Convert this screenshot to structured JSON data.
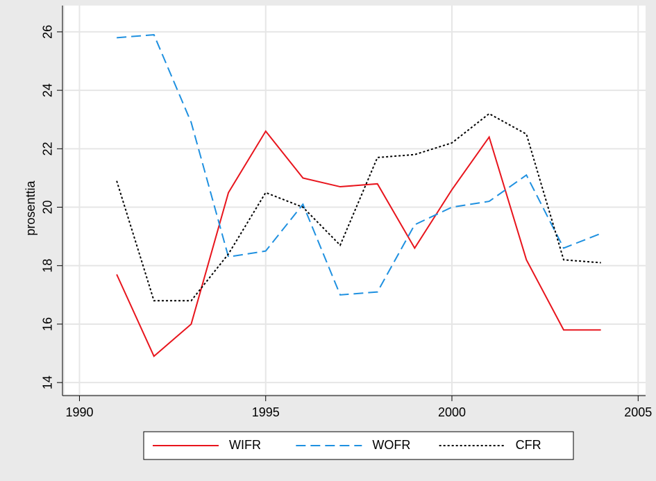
{
  "chart_data": {
    "type": "line",
    "y_label": "prosenttia",
    "x": [
      1991,
      1992,
      1993,
      1994,
      1995,
      1996,
      1997,
      1998,
      1999,
      2000,
      2001,
      2002,
      2003,
      2004
    ],
    "series": [
      {
        "name": "WIFR",
        "color": "#e8141c",
        "dash": "none",
        "values": [
          17.7,
          14.9,
          16.0,
          20.5,
          22.6,
          21.0,
          20.7,
          20.8,
          18.6,
          20.6,
          22.4,
          18.2,
          15.8,
          15.8
        ]
      },
      {
        "name": "WOFR",
        "color": "#1e90e0",
        "dash": "14,7",
        "values": [
          25.8,
          25.9,
          22.9,
          18.3,
          18.5,
          20.1,
          17.0,
          17.1,
          19.4,
          20.0,
          20.2,
          21.1,
          18.6,
          19.1
        ]
      },
      {
        "name": "CFR",
        "color": "#000000",
        "dash": "3,3",
        "values": [
          20.9,
          16.8,
          16.8,
          18.4,
          20.5,
          20.0,
          18.7,
          21.7,
          21.8,
          22.2,
          23.2,
          22.5,
          18.2,
          18.1
        ]
      }
    ],
    "xlim": [
      1989.6,
      2005.2
    ],
    "xticks": [
      1990,
      1995,
      2000,
      2005
    ],
    "ylim": [
      13.6,
      26.9
    ],
    "yticks": [
      14,
      16,
      18,
      20,
      22,
      24,
      26
    ],
    "grid": true,
    "legend": "bottom"
  }
}
